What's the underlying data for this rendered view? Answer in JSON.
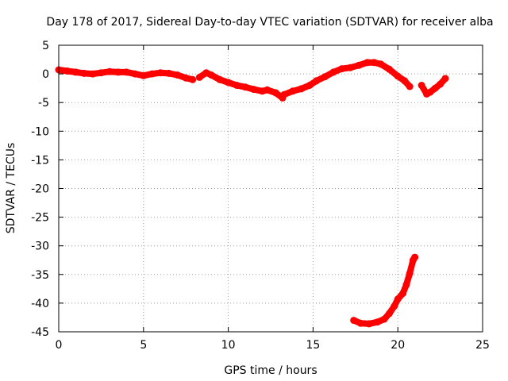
{
  "chart_data": {
    "type": "scatter",
    "title": "Day 178 of 2017, Sidereal Day-to-day VTEC variation (SDTVAR) for receiver alba",
    "xlabel": "GPS time / hours",
    "ylabel": "SDTVAR / TECUs",
    "xlim": [
      0,
      25
    ],
    "ylim": [
      -45,
      5
    ],
    "xticks": [
      0,
      5,
      10,
      15,
      20,
      25
    ],
    "yticks": [
      5,
      0,
      -5,
      -10,
      -15,
      -20,
      -25,
      -30,
      -35,
      -40,
      -45
    ],
    "grid": true,
    "marker_color": "#ff0000",
    "series": [
      {
        "name": "SDTVAR main",
        "points": [
          [
            0.0,
            0.7
          ],
          [
            0.5,
            0.5
          ],
          [
            1.0,
            0.3
          ],
          [
            1.5,
            0.1
          ],
          [
            2.0,
            0.0
          ],
          [
            2.5,
            0.2
          ],
          [
            3.0,
            0.4
          ],
          [
            3.5,
            0.3
          ],
          [
            4.0,
            0.3
          ],
          [
            4.5,
            0.0
          ],
          [
            5.0,
            -0.3
          ],
          [
            5.5,
            0.0
          ],
          [
            6.0,
            0.2
          ],
          [
            6.5,
            0.1
          ],
          [
            7.0,
            -0.2
          ],
          [
            7.5,
            -0.7
          ],
          [
            7.9,
            -1.0
          ]
        ]
      },
      {
        "name": "SDTVAR segment 2",
        "points": [
          [
            8.3,
            -0.6
          ],
          [
            8.7,
            0.2
          ],
          [
            9.0,
            -0.2
          ],
          [
            9.5,
            -1.0
          ],
          [
            10.0,
            -1.5
          ],
          [
            10.5,
            -2.0
          ],
          [
            11.0,
            -2.3
          ],
          [
            11.5,
            -2.7
          ],
          [
            12.0,
            -3.0
          ],
          [
            12.3,
            -2.8
          ],
          [
            12.8,
            -3.3
          ],
          [
            13.2,
            -4.2
          ]
        ]
      },
      {
        "name": "SDTVAR segment 3",
        "points": [
          [
            13.3,
            -3.6
          ],
          [
            13.8,
            -3.0
          ],
          [
            14.3,
            -2.6
          ],
          [
            14.8,
            -2.0
          ],
          [
            15.2,
            -1.2
          ],
          [
            15.7,
            -0.5
          ],
          [
            16.2,
            0.3
          ],
          [
            16.7,
            0.9
          ],
          [
            17.2,
            1.1
          ],
          [
            17.7,
            1.5
          ],
          [
            18.2,
            2.0
          ],
          [
            18.6,
            2.0
          ],
          [
            19.0,
            1.7
          ],
          [
            19.5,
            0.8
          ],
          [
            20.0,
            -0.4
          ],
          [
            20.4,
            -1.2
          ],
          [
            20.7,
            -2.2
          ]
        ]
      },
      {
        "name": "SDTVAR segment 4",
        "points": [
          [
            21.4,
            -2.0
          ],
          [
            21.7,
            -3.5
          ],
          [
            21.9,
            -3.2
          ],
          [
            22.2,
            -2.5
          ],
          [
            22.5,
            -1.8
          ],
          [
            22.8,
            -0.8
          ]
        ]
      },
      {
        "name": "SDTVAR low segment",
        "points": [
          [
            17.4,
            -43.0
          ],
          [
            17.8,
            -43.5
          ],
          [
            18.3,
            -43.6
          ],
          [
            18.8,
            -43.3
          ],
          [
            19.2,
            -42.8
          ],
          [
            19.5,
            -41.8
          ],
          [
            19.8,
            -40.5
          ],
          [
            20.0,
            -39.3
          ],
          [
            20.3,
            -38.3
          ],
          [
            20.5,
            -36.8
          ],
          [
            20.7,
            -34.8
          ],
          [
            20.9,
            -32.5
          ],
          [
            21.0,
            -32.0
          ]
        ]
      }
    ]
  }
}
